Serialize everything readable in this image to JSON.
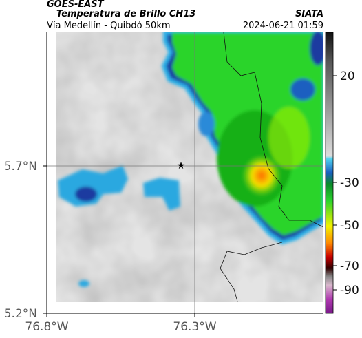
{
  "header": {
    "satellite": "GOES-EAST",
    "title": "Temperatura de Brillo CH13",
    "source": "SIATA",
    "subtitle": "Vía Medellín - Quibdó 50km",
    "datetime": "2024-06-21 01:59"
  },
  "map": {
    "lat_labels": [
      "5.7°N",
      "5.2°N"
    ],
    "lon_labels": [
      "76.8°W",
      "76.3°W"
    ]
  },
  "colorbar": {
    "ticks": [
      20,
      -30,
      -50,
      -70,
      -90
    ]
  }
}
